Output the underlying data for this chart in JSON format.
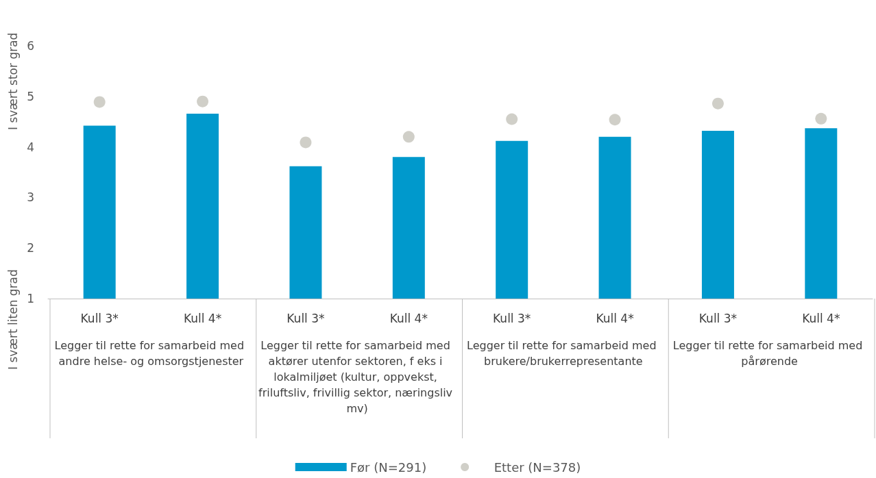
{
  "chart_data": {
    "type": "bar",
    "ylabel": "I svært stor grad",
    "categories": [
      "Kull 3*",
      "Kull 4*",
      "Kull 3*",
      "Kull 4*",
      "Kull 3*",
      "Kull 4*",
      "Kull 3*",
      "Kull 4*"
    ],
    "series": [
      {
        "name": "Før (N=291)",
        "color": "#0099cc",
        "values": [
          4.42,
          4.66,
          3.62,
          3.8,
          4.12,
          4.2,
          4.32,
          4.37
        ]
      },
      {
        "name": "Etter (N=378)",
        "type": "scatter",
        "color": "#d0cfc8",
        "marker": "circle",
        "values": [
          4.89,
          4.9,
          4.09,
          4.2,
          4.55,
          4.54,
          4.86,
          4.56
        ]
      }
    ],
    "ylim": [
      1,
      6
    ],
    "yticks": [
      1,
      2,
      3,
      4,
      5,
      6
    ],
    "grid": false,
    "legend": "bottom",
    "annotations": [
      "Legger til rette for samarbeid med andre helse- og omsorgstjenester",
      "Legger til rette for samarbeid med aktører utenfor sektoren, f eks i lokalmiljøet (kultur, oppvekst, friluftsliv, frivillig sektor, næringsliv mv)",
      "Legger til rette for samarbeid med brukere/brukerrepresentante",
      "Legger til rette for samarbeid med pårørende",
      "I svært liten grad"
    ]
  }
}
